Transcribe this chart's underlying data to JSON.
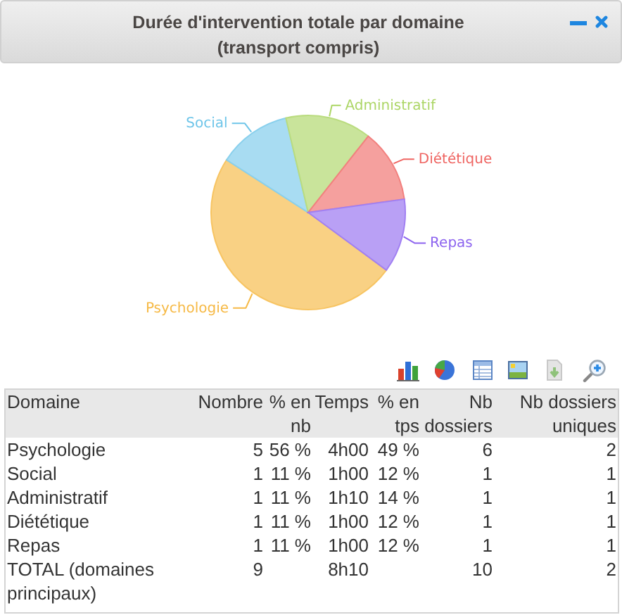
{
  "chart_data": [
    {
      "type": "pie",
      "title": "Durée d'intervention totale par domaine (transport compris)",
      "categories": [
        "Psychologie",
        "Social",
        "Administratif",
        "Diététique",
        "Repas"
      ],
      "values": [
        49,
        12.2,
        14.3,
        12.2,
        12.3
      ],
      "colors": [
        "#f9d184",
        "#a8dcf2",
        "#c9e49b",
        "#f5a09e",
        "#b9a0f5"
      ]
    },
    {
      "type": "other",
      "ylabel": "Domaine",
      "categories": [
        "Nombre",
        "% en nb",
        "Temps",
        "% en tps",
        "Nb dossiers",
        "Nb dossiers uniques"
      ],
      "y_categories": [
        "Psychologie",
        "Social",
        "Administratif",
        "Diététique",
        "Repas",
        "TOTAL (domaines principaux)"
      ],
      "cell_labels": [
        [
          "5",
          "56 %",
          "4h00",
          "49 %",
          "6",
          "2"
        ],
        [
          "1",
          "11 %",
          "1h00",
          "12 %",
          "1",
          "1"
        ],
        [
          "1",
          "11 %",
          "1h10",
          "14 %",
          "1",
          "1"
        ],
        [
          "1",
          "11 %",
          "1h00",
          "12 %",
          "1",
          "1"
        ],
        [
          "1",
          "11 %",
          "1h00",
          "12 %",
          "1",
          "1"
        ],
        [
          "9",
          null,
          "8h10",
          null,
          "10",
          "2"
        ]
      ]
    }
  ]
}
